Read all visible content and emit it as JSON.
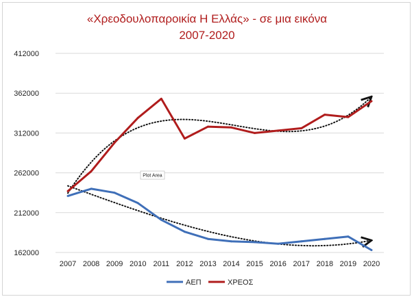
{
  "chart_data": {
    "type": "line",
    "title_line1": "«Χρεοδουλοπαροικία Η Ελλάς»  - σε μια εικόνα",
    "title_line2": "2007-2020",
    "title_color": "#b01c1c",
    "categories": [
      "2007",
      "2008",
      "2009",
      "2010",
      "2011",
      "2012",
      "2013",
      "2014",
      "2015",
      "2016",
      "2017",
      "2018",
      "2019",
      "2020"
    ],
    "y_ticks": [
      "162000",
      "212000",
      "262000",
      "312000",
      "362000",
      "412000"
    ],
    "ylim": [
      162000,
      412000
    ],
    "grid": true,
    "legend_position": "bottom",
    "series": [
      {
        "name": "ΑΕΠ",
        "color": "#3f6fb8",
        "values": [
          233000,
          242000,
          237000,
          224000,
          203000,
          188000,
          179000,
          176000,
          175000,
          173000,
          176000,
          179000,
          182000,
          165000
        ],
        "trend": "polynomial"
      },
      {
        "name": "ΧΡΕΟΣ",
        "color": "#b01c1c",
        "values": [
          239000,
          264000,
          300000,
          331000,
          355000,
          305000,
          320000,
          319000,
          312000,
          315000,
          318000,
          335000,
          332000,
          352000
        ],
        "trend": "polynomial"
      }
    ],
    "annotations": [
      "Plot Area"
    ]
  }
}
